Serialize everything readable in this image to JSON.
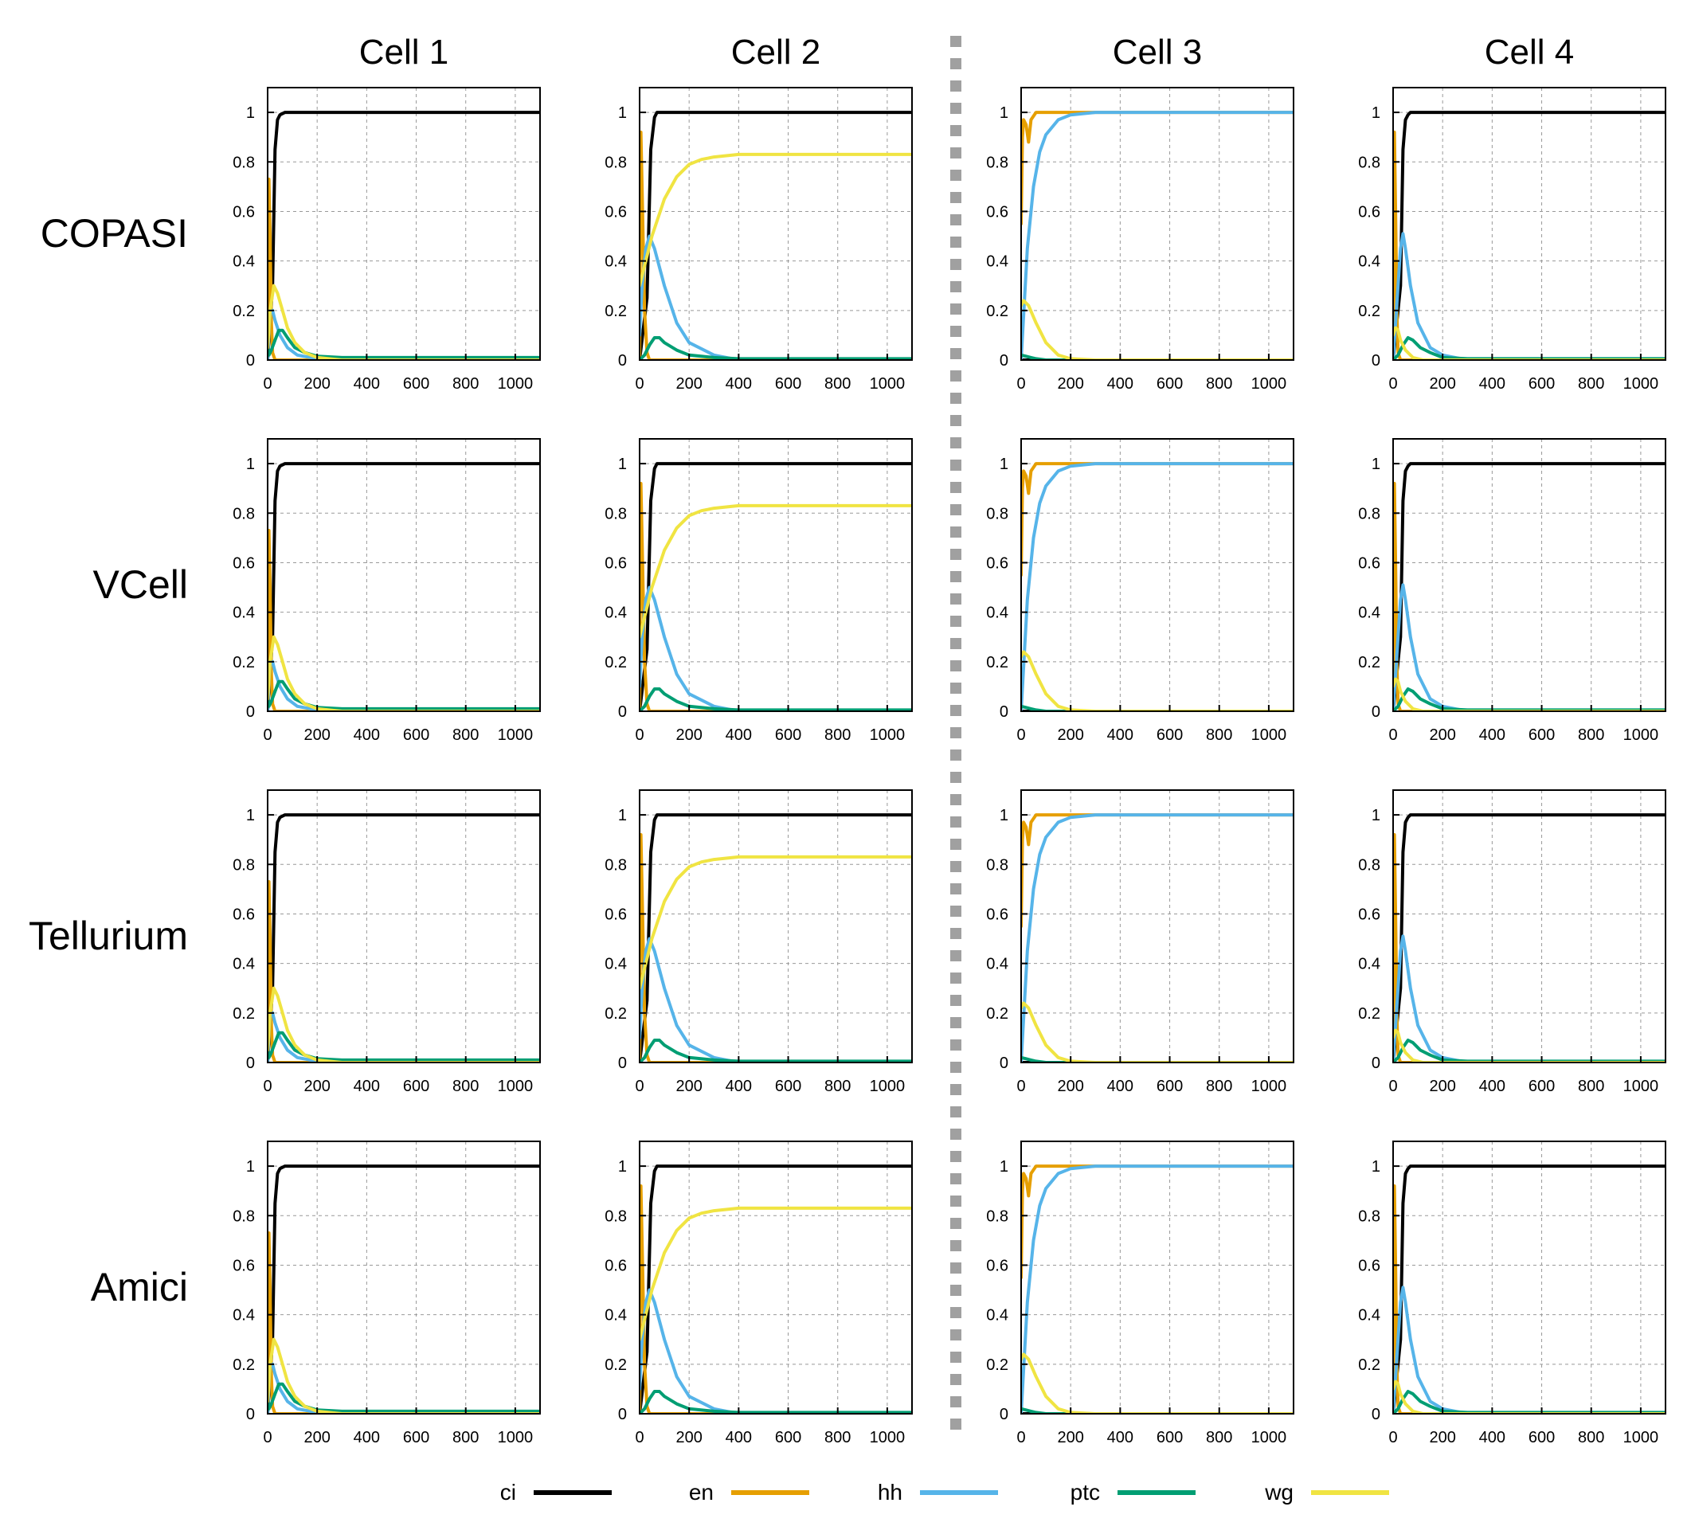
{
  "columns": [
    "Cell 1",
    "Cell 2",
    "Cell 3",
    "Cell 4"
  ],
  "rows": [
    "COPASI",
    "VCell",
    "Tellurium",
    "Amici"
  ],
  "legend": [
    {
      "name": "ci",
      "color": "#000000"
    },
    {
      "name": "en",
      "color": "#E69F00"
    },
    {
      "name": "hh",
      "color": "#56B4E9"
    },
    {
      "name": "ptc",
      "color": "#009E73"
    },
    {
      "name": "wg",
      "color": "#F0E442"
    }
  ],
  "chart_data": {
    "type": "line",
    "layout": "4x4 grid of line plots (rows = simulators, columns = cells); dashed separator between Cell 2 and Cell 3",
    "xlim": [
      0,
      1100
    ],
    "ylim": [
      0,
      1.1
    ],
    "xticks": [
      0,
      200,
      400,
      600,
      800,
      1000
    ],
    "yticks": [
      0,
      0.2,
      0.4,
      0.6,
      0.8,
      1
    ],
    "grid": true,
    "legend_placement": "bottom",
    "note": "All four simulators (rows) show identical trajectories per cell column.",
    "panels": {
      "Cell 1": {
        "series": [
          {
            "name": "ci",
            "x": [
              0,
              20,
              30,
              40,
              50,
              70,
              100,
              1100
            ],
            "y": [
              0.0,
              0.3,
              0.85,
              0.97,
              0.99,
              1.0,
              1.0,
              1.0
            ]
          },
          {
            "name": "en",
            "x": [
              0,
              5,
              10,
              15,
              20,
              30,
              50,
              1100
            ],
            "y": [
              0.0,
              0.73,
              0.5,
              0.15,
              0.03,
              0.0,
              0.0,
              0.0
            ]
          },
          {
            "name": "hh",
            "x": [
              0,
              5,
              10,
              20,
              30,
              50,
              80,
              120,
              200,
              1100
            ],
            "y": [
              0.0,
              0.12,
              0.19,
              0.2,
              0.16,
              0.1,
              0.05,
              0.02,
              0.005,
              0.0
            ]
          },
          {
            "name": "ptc",
            "x": [
              0,
              5,
              15,
              30,
              45,
              60,
              80,
              110,
              150,
              200,
              300,
              1100
            ],
            "y": [
              0.05,
              0.02,
              0.04,
              0.08,
              0.12,
              0.12,
              0.09,
              0.05,
              0.03,
              0.015,
              0.01,
              0.01
            ]
          },
          {
            "name": "wg",
            "x": [
              0,
              10,
              25,
              40,
              60,
              80,
              110,
              150,
              200,
              300,
              1100
            ],
            "y": [
              0.05,
              0.2,
              0.3,
              0.27,
              0.2,
              0.13,
              0.07,
              0.03,
              0.01,
              0.0,
              0.0
            ]
          }
        ]
      },
      "Cell 2": {
        "series": [
          {
            "name": "ci",
            "x": [
              0,
              30,
              45,
              60,
              70,
              100,
              1100
            ],
            "y": [
              0.0,
              0.25,
              0.85,
              0.98,
              1.0,
              1.0,
              1.0
            ]
          },
          {
            "name": "en",
            "x": [
              0,
              5,
              12,
              20,
              30,
              40,
              1100
            ],
            "y": [
              0.0,
              0.92,
              0.6,
              0.2,
              0.03,
              0.0,
              0.0
            ]
          },
          {
            "name": "hh",
            "x": [
              0,
              10,
              25,
              40,
              60,
              100,
              150,
              200,
              300,
              400,
              1100
            ],
            "y": [
              0.1,
              0.3,
              0.45,
              0.5,
              0.45,
              0.3,
              0.15,
              0.07,
              0.02,
              0.0,
              0.0
            ]
          },
          {
            "name": "ptc",
            "x": [
              0,
              20,
              40,
              60,
              80,
              100,
              150,
              200,
              300,
              400,
              1100
            ],
            "y": [
              0.0,
              0.02,
              0.06,
              0.09,
              0.09,
              0.07,
              0.04,
              0.02,
              0.01,
              0.005,
              0.005
            ]
          },
          {
            "name": "wg",
            "x": [
              0,
              50,
              100,
              150,
              200,
              250,
              300,
              400,
              500,
              1100
            ],
            "y": [
              0.3,
              0.5,
              0.65,
              0.74,
              0.79,
              0.81,
              0.82,
              0.83,
              0.83,
              0.83
            ]
          }
        ]
      },
      "Cell 3": {
        "series": [
          {
            "name": "ci",
            "x": [
              0,
              100,
              1100
            ],
            "y": [
              0.0,
              0.0,
              0.0
            ]
          },
          {
            "name": "en",
            "x": [
              0,
              5,
              10,
              20,
              30,
              40,
              60,
              100,
              1100
            ],
            "y": [
              0.55,
              0.9,
              0.97,
              0.95,
              0.88,
              0.97,
              1.0,
              1.0,
              1.0
            ]
          },
          {
            "name": "hh",
            "x": [
              0,
              25,
              50,
              75,
              100,
              150,
              200,
              300,
              400,
              1100
            ],
            "y": [
              0.0,
              0.45,
              0.7,
              0.84,
              0.91,
              0.97,
              0.99,
              1.0,
              1.0,
              1.0
            ]
          },
          {
            "name": "ptc",
            "x": [
              0,
              20,
              40,
              60,
              100,
              1100
            ],
            "y": [
              0.02,
              0.015,
              0.01,
              0.005,
              0.0,
              0.0
            ]
          },
          {
            "name": "wg",
            "x": [
              0,
              10,
              30,
              60,
              100,
              150,
              200,
              300,
              1100
            ],
            "y": [
              0.22,
              0.24,
              0.22,
              0.15,
              0.07,
              0.02,
              0.005,
              0.0,
              0.0
            ]
          }
        ]
      },
      "Cell 4": {
        "series": [
          {
            "name": "ci",
            "x": [
              0,
              30,
              40,
              50,
              60,
              70,
              100,
              1100
            ],
            "y": [
              0.0,
              0.3,
              0.85,
              0.97,
              0.99,
              1.0,
              1.0,
              1.0
            ]
          },
          {
            "name": "en",
            "x": [
              0,
              5,
              10,
              15,
              20,
              30,
              1100
            ],
            "y": [
              0.0,
              0.92,
              0.6,
              0.2,
              0.03,
              0.0,
              0.0
            ]
          },
          {
            "name": "hh",
            "x": [
              0,
              20,
              30,
              40,
              50,
              70,
              100,
              150,
              200,
              300,
              1100
            ],
            "y": [
              0.0,
              0.3,
              0.45,
              0.51,
              0.45,
              0.3,
              0.15,
              0.05,
              0.02,
              0.0,
              0.0
            ]
          },
          {
            "name": "ptc",
            "x": [
              0,
              20,
              40,
              60,
              80,
              110,
              150,
              200,
              300,
              1100
            ],
            "y": [
              0.0,
              0.02,
              0.06,
              0.09,
              0.08,
              0.05,
              0.03,
              0.01,
              0.005,
              0.005
            ]
          },
          {
            "name": "wg",
            "x": [
              0,
              10,
              20,
              30,
              50,
              80,
              120,
              200,
              1100
            ],
            "y": [
              0.1,
              0.13,
              0.12,
              0.08,
              0.04,
              0.01,
              0.0,
              0.0,
              0.0
            ]
          }
        ]
      }
    }
  }
}
